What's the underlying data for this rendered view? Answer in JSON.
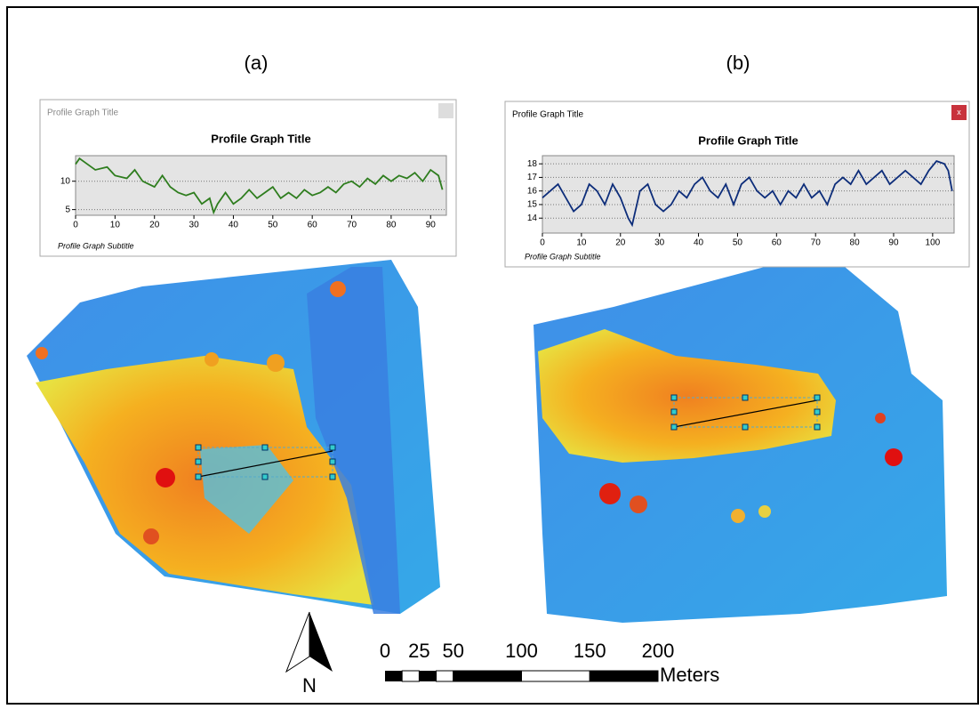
{
  "chart_data": [
    {
      "type": "line",
      "window_title": "Profile Graph Title",
      "title": "Profile Graph Title",
      "subtitle": "Profile Graph Subtitle",
      "x": [
        0,
        1,
        3,
        5,
        8,
        10,
        13,
        15,
        17,
        20,
        22,
        24,
        26,
        28,
        30,
        32,
        34,
        35,
        36,
        38,
        40,
        42,
        44,
        46,
        48,
        50,
        52,
        54,
        56,
        58,
        60,
        62,
        64,
        66,
        68,
        70,
        72,
        74,
        76,
        78,
        80,
        82,
        84,
        86,
        88,
        90,
        92,
        93
      ],
      "series": [
        {
          "color": "#2e7d1e",
          "values": [
            13,
            14,
            13,
            12,
            12.5,
            11,
            10.5,
            12,
            10,
            9,
            11,
            9,
            8,
            7.5,
            8,
            6,
            7,
            4.5,
            6,
            8,
            6,
            7,
            8.5,
            7,
            8,
            9,
            7,
            8,
            7,
            8.5,
            7.5,
            8,
            9,
            8,
            9.5,
            10,
            9,
            10.5,
            9.5,
            11,
            10,
            11,
            10.5,
            11.5,
            10,
            12,
            11,
            8.5
          ]
        }
      ],
      "xlim": [
        0,
        94
      ],
      "xticks": [
        0,
        10,
        20,
        30,
        40,
        50,
        60,
        70,
        80,
        90
      ],
      "ylim": [
        4,
        14.5
      ],
      "yticks": [
        5,
        10
      ],
      "grid": true
    },
    {
      "type": "line",
      "window_title": "Profile Graph Title",
      "close_label": "x",
      "title": "Profile Graph Title",
      "subtitle": "Profile Graph Subtitle",
      "x": [
        0,
        2,
        4,
        6,
        8,
        10,
        12,
        14,
        16,
        18,
        20,
        22,
        23,
        25,
        27,
        29,
        31,
        33,
        35,
        37,
        39,
        41,
        43,
        45,
        47,
        49,
        51,
        53,
        55,
        57,
        59,
        61,
        63,
        65,
        67,
        69,
        71,
        73,
        75,
        77,
        79,
        81,
        83,
        85,
        87,
        89,
        91,
        93,
        95,
        97,
        99,
        101,
        103,
        104,
        105
      ],
      "series": [
        {
          "color": "#0d2d7a",
          "values": [
            15.5,
            16,
            16.5,
            15.5,
            14.5,
            15,
            16.5,
            16,
            15,
            16.5,
            15.5,
            14,
            13.5,
            16,
            16.5,
            15,
            14.5,
            15,
            16,
            15.5,
            16.5,
            17,
            16,
            15.5,
            16.5,
            15,
            16.5,
            17,
            16,
            15.5,
            16,
            15,
            16,
            15.5,
            16.5,
            15.5,
            16,
            15,
            16.5,
            17,
            16.5,
            17.5,
            16.5,
            17,
            17.5,
            16.5,
            17,
            17.5,
            17,
            16.5,
            17.5,
            18.2,
            18,
            17.5,
            16
          ]
        }
      ],
      "xlim": [
        0,
        105.5
      ],
      "xticks": [
        0,
        10,
        20,
        30,
        40,
        50,
        60,
        70,
        80,
        90,
        100
      ],
      "ylim": [
        12.9,
        18.6
      ],
      "yticks": [
        14,
        15,
        16,
        17,
        18
      ],
      "grid": true
    }
  ],
  "panels": [
    "(a)",
    "(b)"
  ],
  "north_label": "N",
  "scale_bar": {
    "ticks": [
      0,
      25,
      50,
      100,
      150,
      200
    ],
    "unit": "Meters"
  }
}
